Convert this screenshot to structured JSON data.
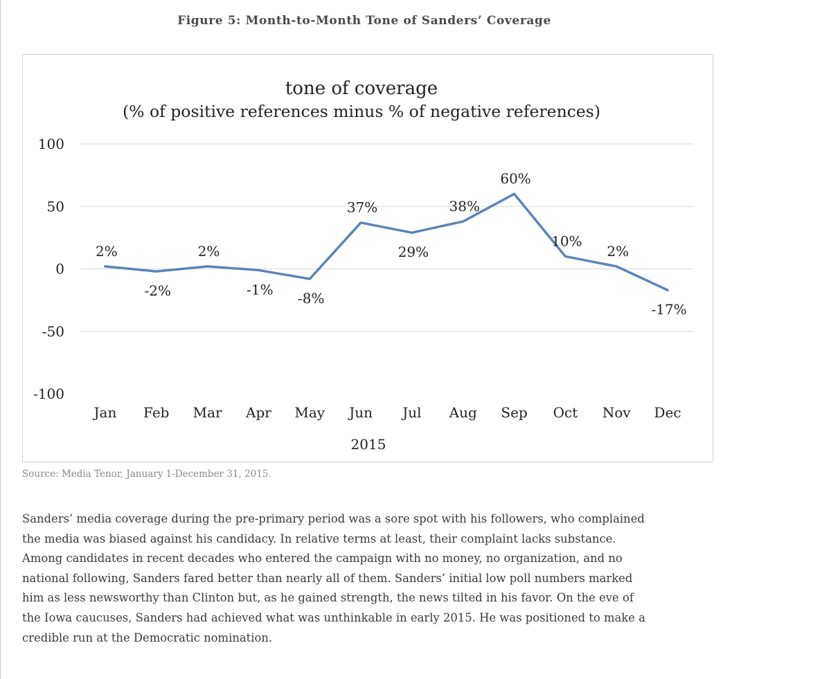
{
  "figure_title": "Figure 5: Month-to-Month Tone of Sanders’ Coverage",
  "source": "Source: Media Tenor, January 1-December 31, 2015.",
  "body_lines": [
    "Sanders’ media coverage during the pre-primary period was a sore spot with his followers, who complained",
    "the media was biased against his candidacy. In relative terms at least, their complaint lacks substance.",
    "Among candidates in recent decades who entered the campaign with no money, no organization, and no",
    "national following, Sanders fared better than nearly all of them. Sanders’ initial low poll numbers marked",
    "him as less newsworthy than Clinton but, as he gained strength, the news tilted in his favor. On the eve of",
    "the Iowa caucuses, Sanders had achieved what was unthinkable in early 2015.  He was positioned to make a",
    "credible run at the Democratic nomination."
  ],
  "chart_data": {
    "type": "line",
    "title": "tone of coverage",
    "subtitle": "(% of positive references minus % of negative references)",
    "xlabel": "2015",
    "ylabel": "",
    "categories": [
      "Jan",
      "Feb",
      "Mar",
      "Apr",
      "May",
      "Jun",
      "Jul",
      "Aug",
      "Sep",
      "Oct",
      "Nov",
      "Dec"
    ],
    "series": [
      {
        "name": "tone of coverage",
        "values": [
          2,
          -2,
          2,
          -1,
          -8,
          37,
          29,
          38,
          60,
          10,
          2,
          -17
        ],
        "labels": [
          "2%",
          "-2%",
          "2%",
          "-1%",
          "-8%",
          "37%",
          "29%",
          "38%",
          "60%",
          "10%",
          "2%",
          "-17%"
        ],
        "label_pos": [
          "above",
          "below",
          "above",
          "below",
          "below",
          "above",
          "below",
          "above",
          "above",
          "above",
          "above",
          "below"
        ]
      }
    ],
    "ylim": [
      -100,
      100
    ],
    "yticks": [
      100,
      50,
      0,
      -50,
      -100
    ],
    "ytick_labels": [
      "100",
      "50",
      "0",
      "-50",
      "-100"
    ],
    "grid": true,
    "line_color": "#5b84b9",
    "grid_color": "#d9d9d9"
  }
}
